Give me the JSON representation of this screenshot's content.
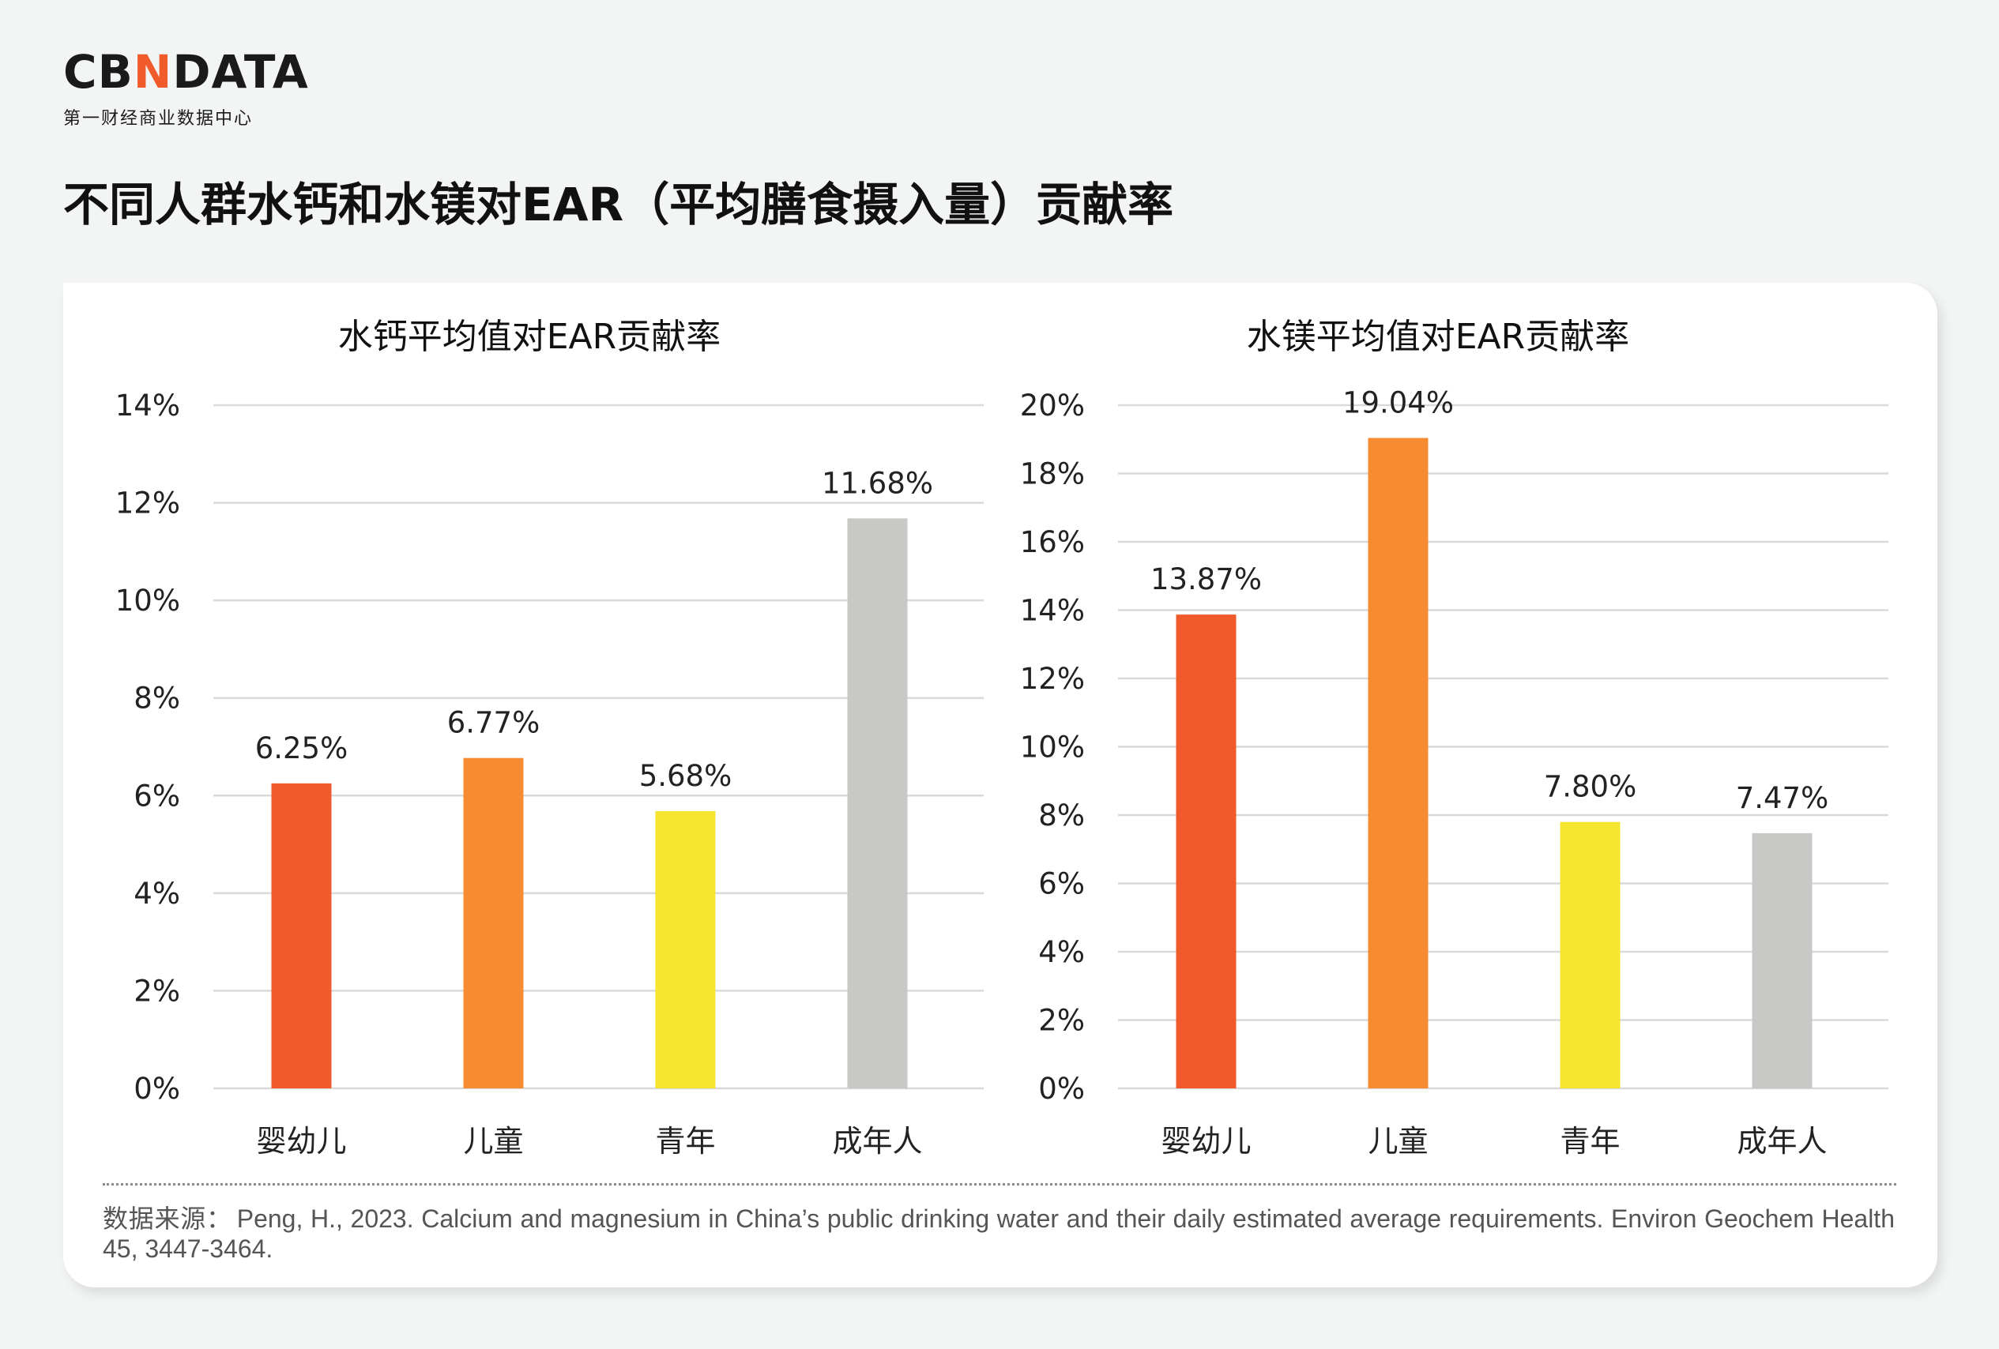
{
  "brand": {
    "logo_prefix": "CB",
    "logo_mark": "N",
    "logo_suffix": "DATA",
    "subtitle": "第一财经商业数据中心",
    "accent_color": "#f15a2b"
  },
  "page_title": "不同人群水钙和水镁对EAR（平均膳食摄入量）贡献率",
  "source": {
    "label": "数据来源：",
    "text": "Peng, H., 2023. Calcium and magnesium in China’s public drinking water and their daily estimated average requirements. Environ Geochem Health 45, 3447-3464."
  },
  "chart_data": [
    {
      "type": "bar",
      "title": "水钙平均值对EAR贡献率",
      "categories": [
        "婴幼儿",
        "儿童",
        "青年",
        "成年人"
      ],
      "values": [
        6.25,
        6.77,
        5.68,
        11.68
      ],
      "value_labels": [
        "6.25%",
        "6.77%",
        "5.68%",
        "11.68%"
      ],
      "colors": [
        "#f15a2b",
        "#f68b32",
        "#f5e52e",
        "#c8c9c7"
      ],
      "ylim": [
        0,
        14
      ],
      "yticks": [
        0,
        2,
        4,
        6,
        8,
        10,
        12,
        14
      ],
      "ytick_labels": [
        "0%",
        "2%",
        "4%",
        "6%",
        "8%",
        "10%",
        "12%",
        "14%"
      ],
      "grid": true,
      "legend": "none"
    },
    {
      "type": "bar",
      "title": "水镁平均值对EAR贡献率",
      "categories": [
        "婴幼儿",
        "儿童",
        "青年",
        "成年人"
      ],
      "values": [
        13.87,
        19.04,
        7.8,
        7.47
      ],
      "value_labels": [
        "13.87%",
        "19.04%",
        "7.80%",
        "7.47%"
      ],
      "colors": [
        "#f15a2b",
        "#f68b32",
        "#f5e52e",
        "#c8c9c7"
      ],
      "ylim": [
        0,
        20
      ],
      "yticks": [
        0,
        2,
        4,
        6,
        8,
        10,
        12,
        14,
        16,
        18,
        20
      ],
      "ytick_labels": [
        "0%",
        "2%",
        "4%",
        "6%",
        "8%",
        "10%",
        "12%",
        "14%",
        "16%",
        "18%",
        "20%"
      ],
      "grid": true,
      "legend": "none"
    }
  ]
}
